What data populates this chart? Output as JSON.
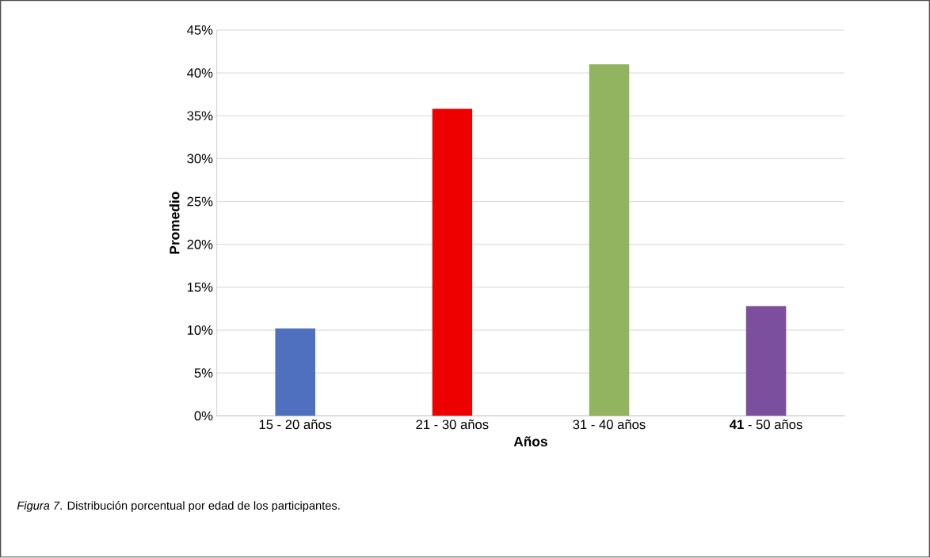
{
  "chart_data": {
    "type": "bar",
    "xlabel": "Años",
    "ylabel": "Promedio",
    "categories": [
      "15 - 20 años",
      "21 - 30 años",
      "31 - 40 años",
      "**41** - 50 años"
    ],
    "values": [
      10.2,
      35.8,
      41.0,
      12.8
    ],
    "colors": [
      "#4f6fbf",
      "#ee0000",
      "#92b460",
      "#7b4f9d"
    ],
    "ylim": [
      0,
      45
    ],
    "yticks": [
      {
        "value": 0,
        "label": "0%"
      },
      {
        "value": 5,
        "label": "5%"
      },
      {
        "value": 10,
        "label": "10%"
      },
      {
        "value": 15,
        "label": "15%"
      },
      {
        "value": 20,
        "label": "20%"
      },
      {
        "value": 25,
        "label": "25%"
      },
      {
        "value": 30,
        "label": "30%"
      },
      {
        "value": 35,
        "label": "35%"
      },
      {
        "value": 40,
        "label": "40%"
      },
      {
        "value": 45,
        "label": "45%"
      }
    ],
    "grid": "y",
    "annotations": [
      "*Figura 7*. Distribución porcentual por edad de los participantes."
    ]
  }
}
